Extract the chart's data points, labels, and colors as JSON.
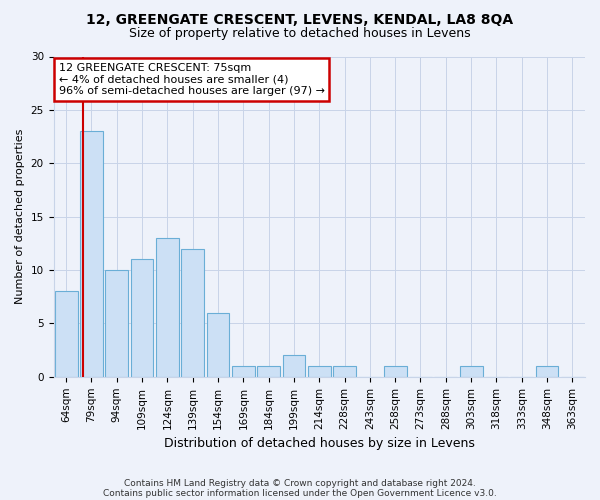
{
  "title1": "12, GREENGATE CRESCENT, LEVENS, KENDAL, LA8 8QA",
  "title2": "Size of property relative to detached houses in Levens",
  "xlabel": "Distribution of detached houses by size in Levens",
  "ylabel": "Number of detached properties",
  "categories": [
    "64sqm",
    "79sqm",
    "94sqm",
    "109sqm",
    "124sqm",
    "139sqm",
    "154sqm",
    "169sqm",
    "184sqm",
    "199sqm",
    "214sqm",
    "228sqm",
    "243sqm",
    "258sqm",
    "273sqm",
    "288sqm",
    "303sqm",
    "318sqm",
    "333sqm",
    "348sqm",
    "363sqm"
  ],
  "values": [
    8,
    23,
    10,
    11,
    13,
    12,
    6,
    1,
    1,
    2,
    1,
    1,
    0,
    1,
    0,
    0,
    1,
    0,
    0,
    1,
    0
  ],
  "bar_color": "#cce0f5",
  "bar_edge_color": "#6aaed6",
  "annotation_line1": "12 GREENGATE CRESCENT: 75sqm",
  "annotation_line2": "← 4% of detached houses are smaller (4)",
  "annotation_line3": "96% of semi-detached houses are larger (97) →",
  "annotation_box_color": "white",
  "annotation_box_edge_color": "#cc0000",
  "vline_x": 0.65,
  "ylim": [
    0,
    30
  ],
  "yticks": [
    0,
    5,
    10,
    15,
    20,
    25,
    30
  ],
  "footer1": "Contains HM Land Registry data © Crown copyright and database right 2024.",
  "footer2": "Contains public sector information licensed under the Open Government Licence v3.0.",
  "bg_color": "#eef2fa",
  "grid_color": "#c8d4e8",
  "title1_fontsize": 10,
  "title2_fontsize": 9,
  "ylabel_fontsize": 8,
  "xlabel_fontsize": 9,
  "tick_fontsize": 7.5,
  "annotation_fontsize": 8,
  "footer_fontsize": 6.5
}
